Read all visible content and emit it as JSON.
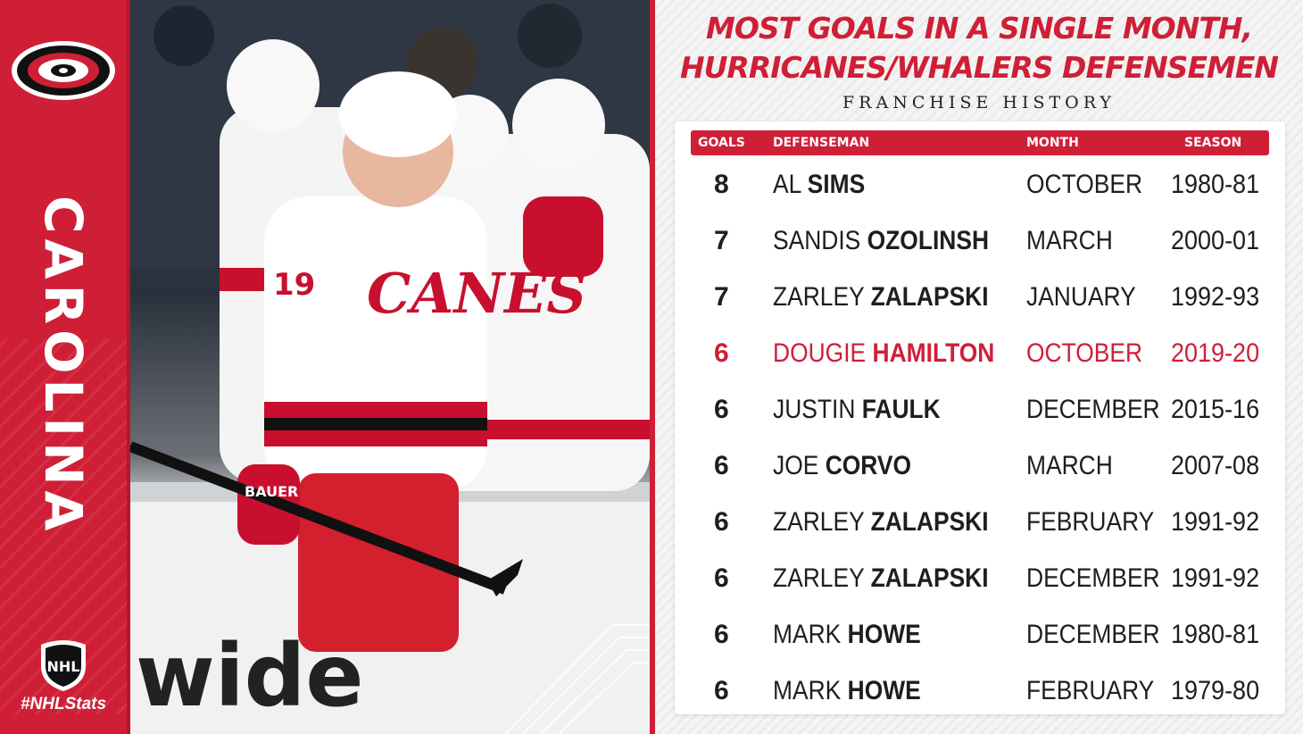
{
  "left_panel": {
    "team_name": "CAROLINA",
    "hashtag": "#NHLStats",
    "logo_icon": "hurricanes-logo-icon",
    "league_icon": "nhl-shield-icon"
  },
  "photo": {
    "jersey_number": "19",
    "team_script": "CANES",
    "stick_brand": "BAUER",
    "board_ad": "wide"
  },
  "headline": {
    "line1": "MOST GOALS IN A SINGLE MONTH,",
    "line2": "HURRICANES/WHALERS DEFENSEMEN",
    "subtitle": "FRANCHISE HISTORY"
  },
  "table": {
    "headers": {
      "goals": "GOALS",
      "defenseman": "DEFENSEMAN",
      "month": "MONTH",
      "season": "SEASON"
    },
    "rows": [
      {
        "goals": "8",
        "first": "AL",
        "last": "SIMS",
        "month": "OCTOBER",
        "season": "1980-81",
        "highlight": false
      },
      {
        "goals": "7",
        "first": "SANDIS",
        "last": "OZOLINSH",
        "month": "MARCH",
        "season": "2000-01",
        "highlight": false
      },
      {
        "goals": "7",
        "first": "ZARLEY",
        "last": "ZALAPSKI",
        "month": "JANUARY",
        "season": "1992-93",
        "highlight": false
      },
      {
        "goals": "6",
        "first": "DOUGIE",
        "last": "HAMILTON",
        "month": "OCTOBER",
        "season": "2019-20",
        "highlight": true
      },
      {
        "goals": "6",
        "first": "JUSTIN",
        "last": "FAULK",
        "month": "DECEMBER",
        "season": "2015-16",
        "highlight": false
      },
      {
        "goals": "6",
        "first": "JOE",
        "last": "CORVO",
        "month": "MARCH",
        "season": "2007-08",
        "highlight": false
      },
      {
        "goals": "6",
        "first": "ZARLEY",
        "last": "ZALAPSKI",
        "month": "FEBRUARY",
        "season": "1991-92",
        "highlight": false
      },
      {
        "goals": "6",
        "first": "ZARLEY",
        "last": "ZALAPSKI",
        "month": "DECEMBER",
        "season": "1991-92",
        "highlight": false
      },
      {
        "goals": "6",
        "first": "MARK",
        "last": "HOWE",
        "month": "DECEMBER",
        "season": "1980-81",
        "highlight": false
      },
      {
        "goals": "6",
        "first": "MARK",
        "last": "HOWE",
        "month": "FEBRUARY",
        "season": "1979-80",
        "highlight": false
      }
    ]
  },
  "colors": {
    "brand_red": "#cf1f37",
    "text_dark": "#1e1e1e",
    "card_bg": "#ffffff"
  }
}
